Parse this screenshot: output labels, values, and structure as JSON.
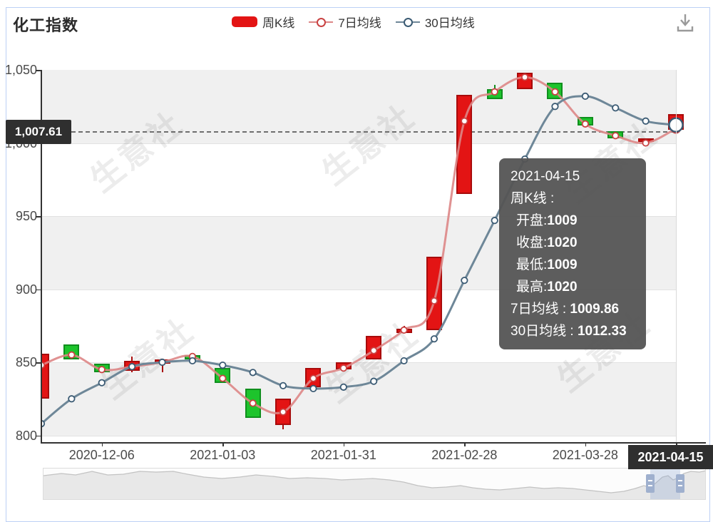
{
  "header": {
    "title": "化工指数",
    "legend": [
      {
        "label": "周K线",
        "type": "candlestick",
        "color": "#e31414"
      },
      {
        "label": "7日均线",
        "type": "line",
        "color": "#c94242",
        "line_color": "#dd8686"
      },
      {
        "label": "30日均线",
        "type": "line",
        "color": "#3a5a73",
        "line_color": "#6e8798"
      }
    ]
  },
  "chart_data": {
    "type": "candlestick",
    "title": "化工指数",
    "xlabel": "",
    "ylabel": "",
    "ylim": [
      795,
      1050
    ],
    "grid": "alternating-horizontal-bands",
    "legend_position": "top",
    "y_ticks": [
      {
        "value": 1050,
        "label": "1,050"
      },
      {
        "value": 1000,
        "label": "1,000"
      },
      {
        "value": 950,
        "label": "950"
      },
      {
        "value": 900,
        "label": "900"
      },
      {
        "value": 850,
        "label": "850"
      },
      {
        "value": 800,
        "label": "800"
      }
    ],
    "x_ticks": [
      {
        "index": 2,
        "label": "2020-12-06"
      },
      {
        "index": 6,
        "label": "2021-01-03"
      },
      {
        "index": 10,
        "label": "2021-01-31"
      },
      {
        "index": 14,
        "label": "2021-02-28"
      },
      {
        "index": 18,
        "label": "2021-03-28"
      }
    ],
    "highlight_x": {
      "index": 21,
      "label": "2021-04-15"
    },
    "marker_line": {
      "label": "1,007.61",
      "value": 1007.61
    },
    "candles": [
      {
        "open": 825,
        "close": 856,
        "low": 825,
        "high": 856
      },
      {
        "open": 862,
        "close": 852,
        "low": 852,
        "high": 862
      },
      {
        "open": 849,
        "close": 843,
        "low": 843,
        "high": 849
      },
      {
        "open": 844,
        "close": 851,
        "low": 843,
        "high": 854
      },
      {
        "open": 849,
        "close": 852,
        "low": 843,
        "high": 852
      },
      {
        "open": 855,
        "close": 852,
        "low": 852,
        "high": 855
      },
      {
        "open": 846,
        "close": 836,
        "low": 836,
        "high": 846
      },
      {
        "open": 832,
        "close": 812,
        "low": 812,
        "high": 832
      },
      {
        "open": 807,
        "close": 825,
        "low": 804,
        "high": 825
      },
      {
        "open": 833,
        "close": 846,
        "low": 833,
        "high": 846
      },
      {
        "open": 845,
        "close": 850,
        "low": 845,
        "high": 850
      },
      {
        "open": 852,
        "close": 868,
        "low": 852,
        "high": 868
      },
      {
        "open": 870,
        "close": 873,
        "low": 870,
        "high": 875
      },
      {
        "open": 872,
        "close": 922,
        "low": 872,
        "high": 922
      },
      {
        "open": 965,
        "close": 1033,
        "low": 965,
        "high": 1033
      },
      {
        "open": 1037,
        "close": 1030,
        "low": 1030,
        "high": 1040
      },
      {
        "open": 1037,
        "close": 1048,
        "low": 1037,
        "high": 1048
      },
      {
        "open": 1041,
        "close": 1030,
        "low": 1030,
        "high": 1041
      },
      {
        "open": 1018,
        "close": 1012,
        "low": 1012,
        "high": 1018
      },
      {
        "open": 1008,
        "close": 1003,
        "low": 1003,
        "high": 1008
      },
      {
        "open": 1002,
        "close": 1003,
        "low": 999,
        "high": 1003
      },
      {
        "open": 1009,
        "close": 1020,
        "low": 1009,
        "high": 1020
      }
    ],
    "series": [
      {
        "name": "7日均线",
        "marker_color": "#c94242",
        "line_color": "rgba(221,134,134,0.9)",
        "values": [
          848,
          855,
          845,
          847,
          850,
          854,
          839,
          822,
          816,
          839,
          846,
          858,
          872,
          892,
          1015,
          1035,
          1045,
          1035,
          1013,
          1005,
          1000,
          1009.86
        ]
      },
      {
        "name": "30日均线",
        "marker_color": "#3a5a73",
        "line_color": "#6e8798",
        "values": [
          808,
          825,
          836,
          847,
          850,
          851,
          848,
          843,
          834,
          832,
          833,
          837,
          851,
          866,
          906,
          947,
          989,
          1025,
          1032,
          1024,
          1015,
          1012.33
        ]
      }
    ],
    "colors": {
      "up_fill": "#e31414",
      "up_border": "#a80b0b",
      "down_fill": "#1dc42c",
      "down_border": "#0f8f1d",
      "band": "#f0f0f0",
      "grid_line": "#e2e2e2",
      "axis_line": "#333333",
      "badge_bg": "#2f2f2f"
    }
  },
  "tooltip": {
    "date": "2021-04-15",
    "series_title": "周K线 : ",
    "rows": [
      {
        "label": "开盘:",
        "value": "1009"
      },
      {
        "label": "收盘:",
        "value": "1020"
      },
      {
        "label": "最低:",
        "value": "1009"
      },
      {
        "label": "最高:",
        "value": "1020"
      }
    ],
    "ma_rows": [
      {
        "label": "7日均线 : ",
        "value": "1009.86"
      },
      {
        "label": "30日均线 : ",
        "value": "1012.33"
      }
    ]
  },
  "watermark": {
    "text": "生意社"
  },
  "icons": {
    "download": "download-icon"
  },
  "navigator": {
    "selection": {
      "x_start": 911,
      "x_end": 953
    },
    "profile": [
      [
        60,
        667
      ],
      [
        85,
        664
      ],
      [
        105,
        666
      ],
      [
        128,
        661
      ],
      [
        150,
        666
      ],
      [
        172,
        665
      ],
      [
        195,
        661
      ],
      [
        218,
        662
      ],
      [
        242,
        661
      ],
      [
        262,
        665
      ],
      [
        285,
        669
      ],
      [
        310,
        671
      ],
      [
        335,
        669
      ],
      [
        358,
        666
      ],
      [
        382,
        668
      ],
      [
        405,
        671
      ],
      [
        430,
        670
      ],
      [
        455,
        671
      ],
      [
        478,
        673
      ],
      [
        500,
        672
      ],
      [
        522,
        671
      ],
      [
        545,
        673
      ],
      [
        565,
        676
      ],
      [
        585,
        681
      ],
      [
        605,
        684
      ],
      [
        625,
        683
      ],
      [
        645,
        681
      ],
      [
        662,
        684
      ],
      [
        680,
        686
      ],
      [
        700,
        687
      ],
      [
        722,
        685
      ],
      [
        742,
        683
      ],
      [
        762,
        685
      ],
      [
        782,
        684
      ],
      [
        802,
        685
      ],
      [
        820,
        687
      ],
      [
        838,
        689
      ],
      [
        856,
        691
      ],
      [
        874,
        689
      ],
      [
        890,
        685
      ],
      [
        902,
        681
      ],
      [
        910,
        683
      ],
      [
        918,
        678
      ],
      [
        928,
        669
      ],
      [
        936,
        667
      ],
      [
        943,
        673
      ],
      [
        950,
        670
      ],
      [
        958,
        664
      ],
      [
        968,
        661
      ],
      [
        980,
        662
      ],
      [
        989,
        660
      ]
    ]
  }
}
